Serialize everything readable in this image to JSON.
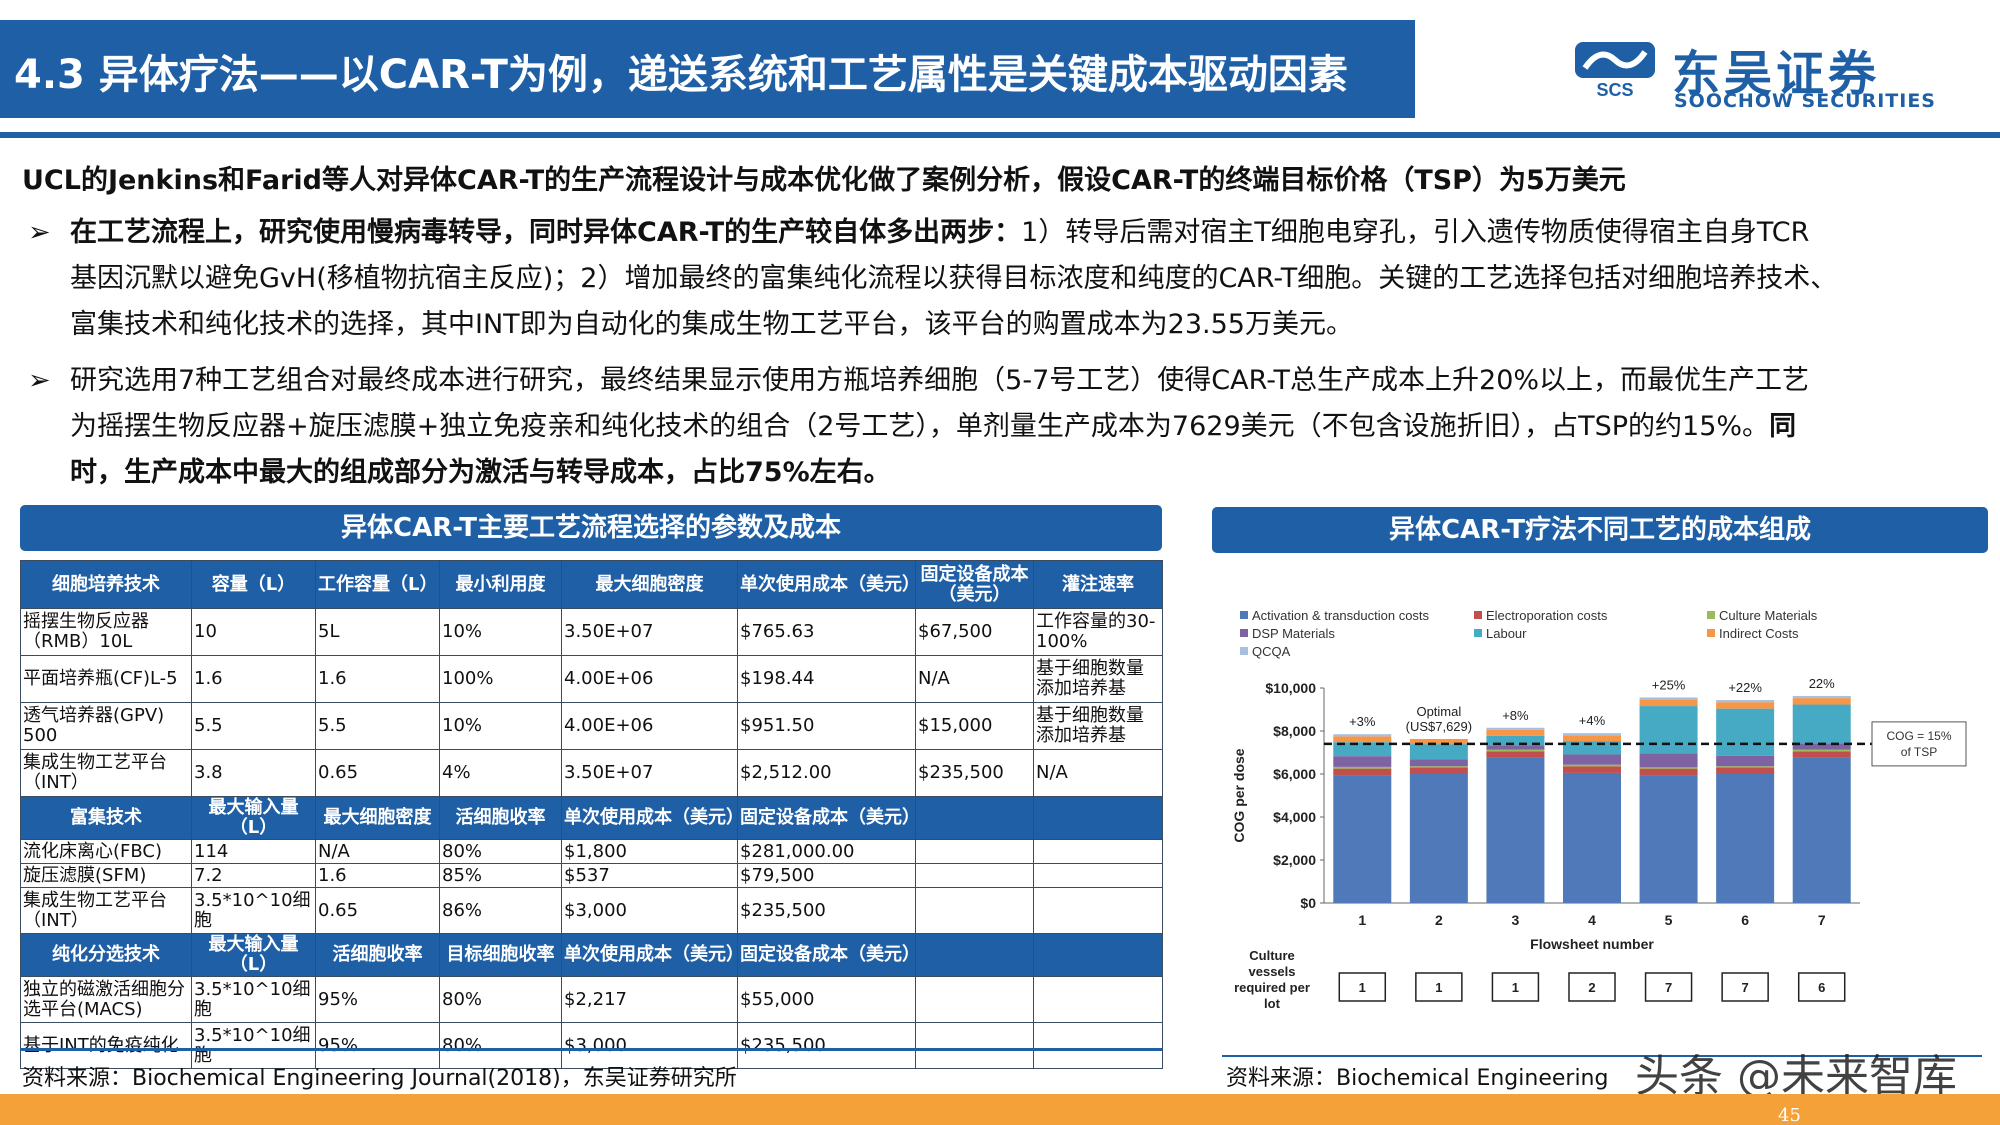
{
  "header": {
    "title": "4.3 异体疗法——以CAR-T为例，递送系统和工艺属性是关键成本驱动因素",
    "logo_cn": "东吴证券",
    "logo_en": "SOOCHOW SECURITIES",
    "logo_abbr": "SCS"
  },
  "intro": "UCL的Jenkins和Farid等人对异体CAR-T的生产流程设计与成本优化做了案例分析，假设CAR-T的终端目标价格（TSP）为5万美元",
  "bullets": {
    "mark": "➢",
    "b1_bold": "在工艺流程上，研究使用慢病毒转导，同时异体CAR-T的生产较自体多出两步：",
    "b1_l1_rest": "1）转导后需对宿主T细胞电穿孔，引入遗传物质使得宿主自身TCR",
    "b1_l2": "基因沉默以避免GvH(移植物抗宿主反应)；2）增加最终的富集纯化流程以获得目标浓度和纯度的CAR-T细胞。关键的工艺选择包括对细胞培养技术、",
    "b1_l3": "富集技术和纯化技术的选择，其中INT即为自动化的集成生物工艺平台，该平台的购置成本为23.55万美元。",
    "b2_l1": "研究选用7种工艺组合对最终成本进行研究，最终结果显示使用方瓶培养细胞（5-7号工艺）使得CAR-T总生产成本上升20%以上，而最优生产工艺",
    "b2_l2_normal": "为摇摆生物反应器+旋压滤膜+独立免疫亲和纯化技术的组合（2号工艺），单剂量生产成本为7629美元（不包含设施折旧），占TSP的约15%。",
    "b2_l2_bold": "同",
    "b2_l3_bold": "时，生产成本中最大的组成部分为激活与转导成本，占比75%左右。"
  },
  "table": {
    "banner": "异体CAR-T主要工艺流程选择的参数及成本",
    "header": [
      "细胞培养技术",
      "容量（L）",
      "工作容量（L）",
      "最小利用度",
      "最大细胞密度",
      "单次使用成本（美元）",
      "固定设备成本（美元）",
      "灌注速率"
    ],
    "rows1": [
      [
        "摇摆生物反应器（RMB）10L",
        "10",
        "5L",
        "10%",
        "3.50E+07",
        "$765.63",
        "$67,500",
        "工作容量的30-100%"
      ],
      [
        "平面培养瓶(CF)L-5",
        "1.6",
        "1.6",
        "100%",
        "4.00E+06",
        "$198.44",
        "N/A",
        "基于细胞数量添加培养基"
      ],
      [
        "透气培养器(GPV) 500",
        "5.5",
        "5.5",
        "10%",
        "4.00E+06",
        "$951.50",
        "$15,000",
        "基于细胞数量添加培养基"
      ],
      [
        "集成生物工艺平台（INT）",
        "3.8",
        "0.65",
        "4%",
        "3.50E+07",
        "$2,512.00",
        "$235,500",
        "N/A"
      ]
    ],
    "header2": [
      "富集技术",
      "最大输入量（L）",
      "最大细胞密度",
      "活细胞收率",
      "单次使用成本（美元）",
      "固定设备成本（美元）",
      "",
      ""
    ],
    "rows2": [
      [
        "流化床离心(FBC)",
        "114",
        "N/A",
        "80%",
        "$1,800",
        "$281,000.00",
        "",
        ""
      ],
      [
        "旋压滤膜(SFM)",
        "7.2",
        "1.6",
        "85%",
        "$537",
        "$79,500",
        "",
        ""
      ],
      [
        "集成生物工艺平台（INT）",
        "3.5*10^10细胞",
        "0.65",
        "86%",
        "$3,000",
        "$235,500",
        "",
        ""
      ]
    ],
    "header3": [
      "纯化分选技术",
      "最大输入量（L）",
      "活细胞收率",
      "目标细胞收率",
      "单次使用成本（美元）",
      "固定设备成本（美元）",
      "",
      ""
    ],
    "rows3": [
      [
        "独立的磁激活细胞分选平台(MACS)",
        "3.5*10^10细胞",
        "95%",
        "80%",
        "$2,217",
        "$55,000",
        "",
        ""
      ],
      [
        "基于INT的免疫纯化",
        "3.5*10^10细胞",
        "95%",
        "80%",
        "$3,000",
        "$235,500",
        "",
        ""
      ]
    ]
  },
  "chart_banner": "异体CAR-T疗法不同工艺的成本组成",
  "chart_data": {
    "type": "bar",
    "stacked": true,
    "categories": [
      "1",
      "2",
      "3",
      "4",
      "5",
      "6",
      "7"
    ],
    "xlabel": "Flowsheet number",
    "ylabel": "COG per dose",
    "ylim": [
      0,
      10000
    ],
    "yticks": [
      "$0",
      "$2,000",
      "$4,000",
      "$6,000",
      "$8,000",
      "$10,000"
    ],
    "series": [
      {
        "name": "Activation & transduction costs",
        "color": "#4f79b8",
        "values": [
          5950,
          6000,
          6750,
          6050,
          5950,
          6000,
          6750
        ]
      },
      {
        "name": "Electroporation costs",
        "color": "#c0504d",
        "values": [
          300,
          300,
          300,
          300,
          300,
          300,
          300
        ]
      },
      {
        "name": "Culture Materials",
        "color": "#9bbb59",
        "values": [
          80,
          60,
          80,
          80,
          60,
          60,
          80
        ]
      },
      {
        "name": "DSP Materials",
        "color": "#7e63a2",
        "values": [
          500,
          330,
          200,
          480,
          650,
          480,
          300
        ]
      },
      {
        "name": "Labour",
        "color": "#46aac4",
        "values": [
          650,
          700,
          450,
          620,
          2200,
          2200,
          1800
        ]
      },
      {
        "name": "Indirect Costs",
        "color": "#f79646",
        "values": [
          270,
          239,
          270,
          270,
          300,
          300,
          300
        ]
      },
      {
        "name": "QCQA",
        "color": "#a7bfe0",
        "values": [
          100,
          0,
          100,
          100,
          100,
          100,
          100
        ]
      }
    ],
    "bar_labels": [
      "+3%",
      "Optimal\n(US$7,629)",
      "+8%",
      "+4%",
      "+25%",
      "+22%",
      "22%"
    ],
    "reference_line": {
      "value": 7400,
      "label": "COG = 15%\nof TSP"
    },
    "culture_vessels_label": "Culture\nvessels\nrequired per\nlot",
    "culture_vessels": [
      "1",
      "1",
      "1",
      "2",
      "7",
      "7",
      "6"
    ]
  },
  "sources": {
    "left": "资料来源：Biochemical Engineering Journal(2018)，东吴证券研究所",
    "right": "资料来源：Biochemical Engineering"
  },
  "watermark": "头条 @未来智库",
  "page_number": "45",
  "colors": {
    "brand_blue": "#1f5fa6",
    "footer_orange": "#f4a13a"
  }
}
